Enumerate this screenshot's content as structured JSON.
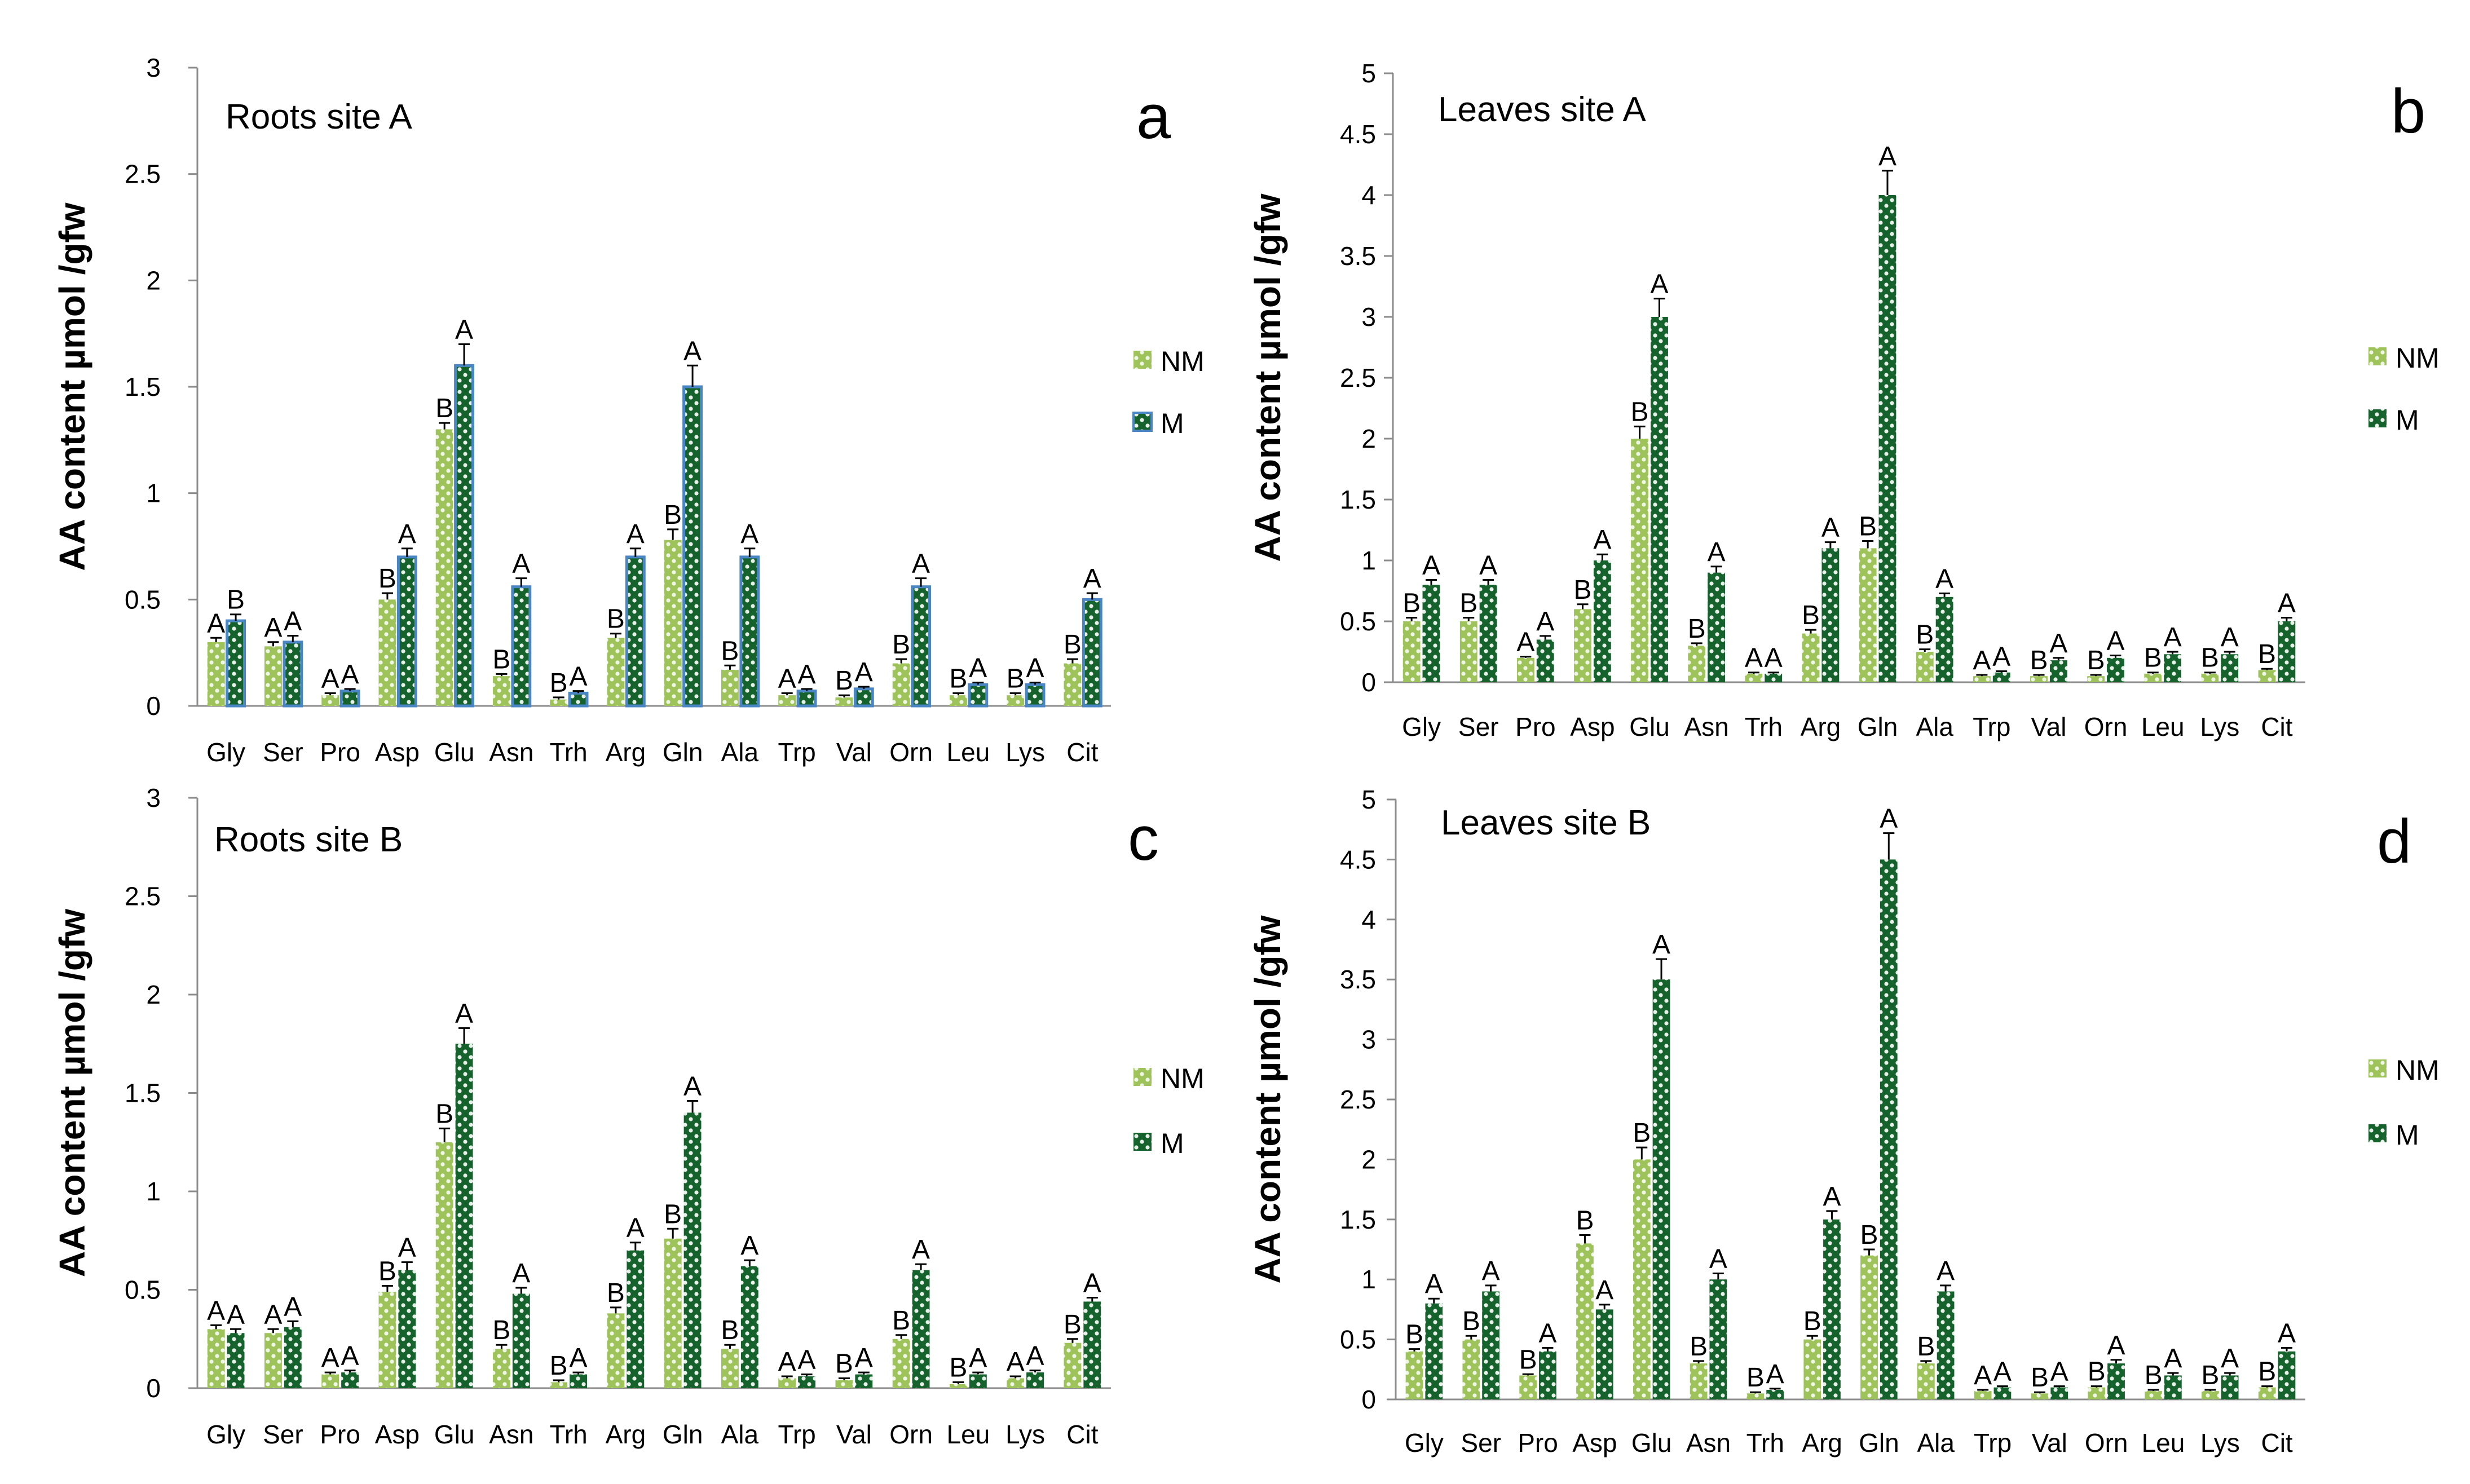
{
  "figure": {
    "ylabel": "AA content µmol /gfw",
    "legend": {
      "nm": "NM",
      "m": "M"
    },
    "colors": {
      "nm": "#9dc35a",
      "nm_dot": "#ffffff",
      "m": "#15622c",
      "m_dot": "#ffffff",
      "m_border_a": "#4a86c4",
      "axis": "#8c8c8c",
      "text": "#000000"
    }
  },
  "chart_data": [
    {
      "type": "bar",
      "panel": "a",
      "title": "Roots   site  A",
      "xlabel": "",
      "ylabel": "AA content µmol /gfw",
      "ylim": [
        0,
        3
      ],
      "yticks": [
        "0",
        "0.5",
        "1",
        "1.5",
        "2",
        "2.5",
        "3"
      ],
      "categories": [
        "Gly",
        "Ser",
        "Pro",
        "Asp",
        "Glu",
        "Asn",
        "Trh",
        "Arg",
        "Gln",
        "Ala",
        "Trp",
        "Val",
        "Orn",
        "Leu",
        "Lys",
        "Cit"
      ],
      "legend": [
        "NM",
        "M"
      ],
      "legend_position": "right",
      "series": [
        {
          "name": "NM",
          "values": [
            0.3,
            0.28,
            0.05,
            0.5,
            1.3,
            0.14,
            0.03,
            0.32,
            0.78,
            0.17,
            0.05,
            0.04,
            0.2,
            0.05,
            0.05,
            0.2
          ],
          "errors": [
            0.02,
            0.02,
            0.01,
            0.03,
            0.03,
            0.01,
            0.01,
            0.02,
            0.05,
            0.02,
            0.01,
            0.01,
            0.02,
            0.01,
            0.01,
            0.02
          ],
          "letters": [
            "A",
            "A",
            "A",
            "B",
            "B",
            "B",
            "B",
            "B",
            "B",
            "B",
            "A",
            "B",
            "B",
            "B",
            "B",
            "B"
          ]
        },
        {
          "name": "M",
          "values": [
            0.4,
            0.3,
            0.07,
            0.7,
            1.6,
            0.56,
            0.06,
            0.7,
            1.5,
            0.7,
            0.07,
            0.08,
            0.56,
            0.1,
            0.1,
            0.5
          ],
          "errors": [
            0.03,
            0.03,
            0.01,
            0.04,
            0.1,
            0.04,
            0.01,
            0.04,
            0.1,
            0.04,
            0.01,
            0.01,
            0.04,
            0.01,
            0.01,
            0.03
          ],
          "letters": [
            "B",
            "A",
            "A",
            "A",
            "A",
            "A",
            "A",
            "A",
            "A",
            "A",
            "A",
            "A",
            "A",
            "A",
            "A",
            "A"
          ]
        }
      ]
    },
    {
      "type": "bar",
      "panel": "b",
      "title": "Leaves   site  A",
      "xlabel": "",
      "ylabel": "AA content µmol /gfw",
      "ylim": [
        0,
        5
      ],
      "yticks": [
        "0",
        "0.5",
        "1",
        "1.5",
        "2",
        "2.5",
        "3",
        "3.5",
        "4",
        "4.5",
        "5"
      ],
      "categories": [
        "Gly",
        "Ser",
        "Pro",
        "Asp",
        "Glu",
        "Asn",
        "Trh",
        "Arg",
        "Gln",
        "Ala",
        "Trp",
        "Val",
        "Orn",
        "Leu",
        "Lys",
        "Cit"
      ],
      "legend": [
        "NM",
        "M"
      ],
      "legend_position": "right",
      "series": [
        {
          "name": "NM",
          "values": [
            0.5,
            0.5,
            0.2,
            0.6,
            2.0,
            0.3,
            0.07,
            0.4,
            1.1,
            0.25,
            0.05,
            0.05,
            0.05,
            0.07,
            0.07,
            0.1
          ],
          "errors": [
            0.03,
            0.03,
            0.01,
            0.04,
            0.1,
            0.02,
            0.01,
            0.03,
            0.06,
            0.02,
            0.01,
            0.01,
            0.01,
            0.01,
            0.01,
            0.01
          ],
          "letters": [
            "B",
            "B",
            "A",
            "B",
            "B",
            "B",
            "A",
            "B",
            "B",
            "B",
            "A",
            "B",
            "B",
            "B",
            "B",
            "B"
          ]
        },
        {
          "name": "M",
          "values": [
            0.8,
            0.8,
            0.35,
            1.0,
            3.0,
            0.9,
            0.07,
            1.1,
            4.0,
            0.7,
            0.08,
            0.18,
            0.2,
            0.23,
            0.23,
            0.5
          ],
          "errors": [
            0.04,
            0.04,
            0.03,
            0.05,
            0.15,
            0.05,
            0.01,
            0.05,
            0.2,
            0.03,
            0.01,
            0.02,
            0.02,
            0.02,
            0.02,
            0.03
          ],
          "letters": [
            "A",
            "A",
            "A",
            "A",
            "A",
            "A",
            "A",
            "A",
            "A",
            "A",
            "A",
            "A",
            "A",
            "A",
            "A",
            "A"
          ]
        }
      ]
    },
    {
      "type": "bar",
      "panel": "c",
      "title": "Roots   site  B",
      "xlabel": "",
      "ylabel": "AA content µmol /gfw",
      "ylim": [
        0,
        3
      ],
      "yticks": [
        "0",
        "0.5",
        "1",
        "1.5",
        "2",
        "2.5",
        "3"
      ],
      "categories": [
        "Gly",
        "Ser",
        "Pro",
        "Asp",
        "Glu",
        "Asn",
        "Trh",
        "Arg",
        "Gln",
        "Ala",
        "Trp",
        "Val",
        "Orn",
        "Leu",
        "Lys",
        "Cit"
      ],
      "legend": [
        "NM",
        "M"
      ],
      "legend_position": "right",
      "series": [
        {
          "name": "NM",
          "values": [
            0.3,
            0.28,
            0.07,
            0.49,
            1.25,
            0.2,
            0.03,
            0.38,
            0.76,
            0.2,
            0.05,
            0.04,
            0.25,
            0.02,
            0.05,
            0.23
          ],
          "errors": [
            0.02,
            0.02,
            0.01,
            0.03,
            0.07,
            0.02,
            0.01,
            0.03,
            0.05,
            0.02,
            0.01,
            0.01,
            0.02,
            0.01,
            0.01,
            0.02
          ],
          "letters": [
            "A",
            "A",
            "A",
            "B",
            "B",
            "B",
            "B",
            "B",
            "B",
            "B",
            "A",
            "B",
            "B",
            "B",
            "A",
            "B"
          ]
        },
        {
          "name": "M",
          "values": [
            0.28,
            0.31,
            0.08,
            0.6,
            1.75,
            0.48,
            0.07,
            0.7,
            1.4,
            0.62,
            0.06,
            0.07,
            0.6,
            0.07,
            0.08,
            0.44
          ],
          "errors": [
            0.02,
            0.03,
            0.01,
            0.04,
            0.08,
            0.03,
            0.01,
            0.04,
            0.06,
            0.03,
            0.01,
            0.01,
            0.03,
            0.01,
            0.01,
            0.02
          ],
          "letters": [
            "A",
            "A",
            "A",
            "A",
            "A",
            "A",
            "A",
            "A",
            "A",
            "A",
            "A",
            "A",
            "A",
            "A",
            "A",
            "A"
          ]
        }
      ]
    },
    {
      "type": "bar",
      "panel": "d",
      "title": "Leaves   site  B",
      "xlabel": "",
      "ylabel": "AA content µmol /gfw",
      "ylim": [
        0,
        5
      ],
      "yticks": [
        "0",
        "0.5",
        "1",
        "1.5",
        "2",
        "2.5",
        "3",
        "3.5",
        "4",
        "4.5",
        "5"
      ],
      "categories": [
        "Gly",
        "Ser",
        "Pro",
        "Asp",
        "Glu",
        "Asn",
        "Trh",
        "Arg",
        "Gln",
        "Ala",
        "Trp",
        "Val",
        "Orn",
        "Leu",
        "Lys",
        "Cit"
      ],
      "legend": [
        "NM",
        "M"
      ],
      "legend_position": "right",
      "series": [
        {
          "name": "NM",
          "values": [
            0.4,
            0.5,
            0.2,
            1.3,
            2.0,
            0.3,
            0.05,
            0.5,
            1.2,
            0.3,
            0.07,
            0.05,
            0.1,
            0.07,
            0.07,
            0.1
          ],
          "errors": [
            0.02,
            0.03,
            0.01,
            0.07,
            0.1,
            0.02,
            0.01,
            0.03,
            0.05,
            0.02,
            0.01,
            0.01,
            0.01,
            0.01,
            0.01,
            0.01
          ],
          "letters": [
            "B",
            "B",
            "B",
            "B",
            "B",
            "B",
            "B",
            "B",
            "B",
            "B",
            "A",
            "B",
            "B",
            "B",
            "B",
            "B"
          ]
        },
        {
          "name": "M",
          "values": [
            0.8,
            0.9,
            0.4,
            0.75,
            3.5,
            1.0,
            0.08,
            1.5,
            4.5,
            0.9,
            0.1,
            0.1,
            0.3,
            0.2,
            0.2,
            0.4
          ],
          "errors": [
            0.04,
            0.05,
            0.03,
            0.04,
            0.17,
            0.05,
            0.01,
            0.07,
            0.22,
            0.05,
            0.01,
            0.01,
            0.03,
            0.02,
            0.02,
            0.03
          ],
          "letters": [
            "A",
            "A",
            "A",
            "A",
            "A",
            "A",
            "A",
            "A",
            "A",
            "A",
            "A",
            "A",
            "A",
            "A",
            "A",
            "A"
          ]
        }
      ]
    }
  ]
}
